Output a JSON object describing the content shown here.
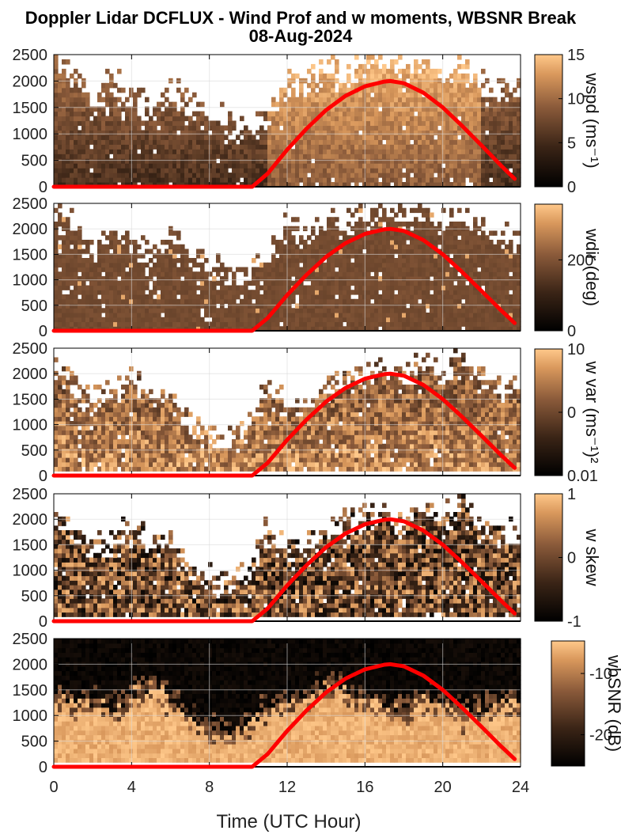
{
  "figure": {
    "title_line1": "Doppler Lidar DCFLUX - Wind Prof and w moments, WBSNR Break",
    "title_line2": "08-Aug-2024",
    "xlabel": "Time (UTC Hour)"
  },
  "colors": {
    "colormap_low": "#000000",
    "colormap_mid": "#8a5a3a",
    "colormap_high": "#ffc88a",
    "overlay_line": "#ff0000",
    "axis": "#000000",
    "grid": "#d8d8d8"
  },
  "chart_data": [
    {
      "type": "heatmap",
      "panel": "wspd",
      "colorbar_label": "wspd (ms⁻¹)",
      "colorbar_ticks": [
        "15",
        "10",
        "5",
        "0"
      ],
      "clim": [
        0,
        15
      ],
      "xlim": [
        0,
        24
      ],
      "ylim": [
        0,
        2500
      ],
      "x_ticks": [
        "0",
        "4",
        "8",
        "12",
        "16",
        "20",
        "24"
      ],
      "y_ticks": [
        "0",
        "500",
        "1000",
        "1500",
        "2000",
        "2500"
      ],
      "grid": true,
      "data_top_per_hour": [
        2300,
        2100,
        1600,
        2000,
        1700,
        1400,
        1900,
        1500,
        1300,
        1200,
        1000,
        1400,
        2000,
        1900,
        2200,
        2100,
        2300,
        2400,
        2200,
        2400,
        2100,
        2300,
        1900,
        1800
      ],
      "overlay_line": {
        "x": [
          0,
          10.2,
          11,
          12,
          13,
          14,
          15,
          16,
          17,
          17.3,
          18,
          19,
          20,
          21,
          22,
          23,
          23.7
        ],
        "y": [
          0,
          0,
          250,
          700,
          1100,
          1450,
          1720,
          1900,
          1990,
          2000,
          1960,
          1780,
          1500,
          1150,
          780,
          400,
          150
        ]
      }
    },
    {
      "type": "heatmap",
      "panel": "wdir",
      "colorbar_label": "wdir (deg)",
      "colorbar_ticks": [
        "200",
        "0"
      ],
      "clim": [
        0,
        360
      ],
      "xlim": [
        0,
        24
      ],
      "ylim": [
        0,
        2500
      ],
      "x_ticks": [
        "0",
        "4",
        "8",
        "12",
        "16",
        "20",
        "24"
      ],
      "y_ticks": [
        "0",
        "500",
        "1000",
        "1500",
        "2000",
        "2500"
      ],
      "grid": true,
      "data_top_per_hour": [
        2300,
        2100,
        1600,
        2000,
        1700,
        1400,
        1900,
        1500,
        1300,
        1200,
        1000,
        1400,
        2000,
        1900,
        2200,
        2100,
        2300,
        2400,
        2200,
        2400,
        2100,
        2300,
        1900,
        1800
      ],
      "overlay_line": {
        "x": [
          0,
          10.2,
          11,
          12,
          13,
          14,
          15,
          16,
          17,
          17.3,
          18,
          19,
          20,
          21,
          22,
          23,
          23.7
        ],
        "y": [
          0,
          0,
          250,
          700,
          1100,
          1450,
          1720,
          1900,
          1990,
          2000,
          1960,
          1780,
          1500,
          1150,
          780,
          400,
          150
        ]
      }
    },
    {
      "type": "heatmap",
      "panel": "w var",
      "colorbar_label": "w var (ms⁻¹)²",
      "colorbar_ticks": [
        "10",
        "0",
        "0.01"
      ],
      "clim": [
        0.01,
        10
      ],
      "xlim": [
        0,
        24
      ],
      "ylim": [
        0,
        2500
      ],
      "x_ticks": [
        "0",
        "4",
        "8",
        "12",
        "16",
        "20",
        "24"
      ],
      "y_ticks": [
        "0",
        "500",
        "1000",
        "1500",
        "2000",
        "2500"
      ],
      "grid": true,
      "data_top_per_hour": [
        2100,
        1800,
        1400,
        1600,
        1900,
        1500,
        1600,
        1000,
        800,
        700,
        900,
        1800,
        1500,
        1400,
        1700,
        1900,
        2000,
        2100,
        1900,
        2200,
        2000,
        2300,
        1900,
        1700
      ],
      "overlay_line": {
        "x": [
          0,
          10.2,
          11,
          12,
          13,
          14,
          15,
          16,
          17,
          17.3,
          18,
          19,
          20,
          21,
          22,
          23,
          23.7
        ],
        "y": [
          0,
          0,
          250,
          700,
          1100,
          1450,
          1720,
          1900,
          1990,
          2000,
          1960,
          1780,
          1500,
          1150,
          780,
          400,
          150
        ]
      }
    },
    {
      "type": "heatmap",
      "panel": "w skew",
      "colorbar_label": "w skew",
      "colorbar_ticks": [
        "1",
        "0",
        "-1"
      ],
      "clim": [
        -1,
        1
      ],
      "xlim": [
        0,
        24
      ],
      "ylim": [
        0,
        2500
      ],
      "x_ticks": [
        "0",
        "4",
        "8",
        "12",
        "16",
        "20",
        "24"
      ],
      "y_ticks": [
        "0",
        "500",
        "1000",
        "1500",
        "2000",
        "2500"
      ],
      "grid": true,
      "data_top_per_hour": [
        2100,
        1800,
        1400,
        1600,
        1900,
        1500,
        1600,
        1000,
        800,
        700,
        900,
        1800,
        1500,
        1400,
        1700,
        1900,
        2000,
        2100,
        1900,
        2200,
        2000,
        2300,
        1900,
        1700
      ],
      "overlay_line": {
        "x": [
          0,
          10.2,
          11,
          12,
          13,
          14,
          15,
          16,
          17,
          17.3,
          18,
          19,
          20,
          21,
          22,
          23,
          23.7
        ],
        "y": [
          0,
          0,
          250,
          700,
          1100,
          1450,
          1720,
          1900,
          1990,
          2000,
          1960,
          1780,
          1500,
          1150,
          780,
          400,
          150
        ]
      }
    },
    {
      "type": "heatmap",
      "panel": "wbSNR",
      "colorbar_label": "wbSNR (dB)",
      "colorbar_ticks": [
        "-10",
        "-20"
      ],
      "clim": [
        -30,
        0
      ],
      "xlim": [
        0,
        24
      ],
      "ylim": [
        0,
        2500
      ],
      "x_ticks": [
        "0",
        "4",
        "8",
        "12",
        "16",
        "20",
        "24"
      ],
      "y_ticks": [
        "0",
        "500",
        "1000",
        "1500",
        "2000",
        "2500"
      ],
      "grid": true,
      "bright_top_per_hour": [
        1300,
        1100,
        1200,
        1000,
        1300,
        1500,
        1200,
        900,
        600,
        500,
        700,
        1000,
        1100,
        1200,
        1500,
        1400,
        1200,
        1100,
        1000,
        1200,
        1100,
        900,
        1000,
        1200
      ],
      "overlay_line": {
        "x": [
          0,
          10.2,
          11,
          12,
          13,
          14,
          15,
          16,
          17,
          17.3,
          18,
          19,
          20,
          21,
          22,
          23,
          23.7
        ],
        "y": [
          0,
          0,
          250,
          700,
          1100,
          1450,
          1720,
          1900,
          1990,
          2000,
          1960,
          1780,
          1500,
          1150,
          780,
          400,
          150
        ]
      }
    }
  ]
}
